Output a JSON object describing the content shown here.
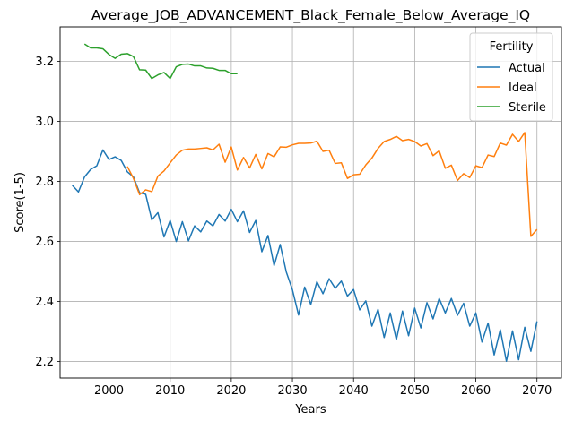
{
  "chart_data": {
    "type": "line",
    "title": "Average_JOB_ADVANCEMENT_Black_Female_Below_Average_IQ",
    "xlabel": "Years",
    "ylabel": "Score(1-5)",
    "xlim": [
      1992,
      2074
    ],
    "ylim": [
      2.145,
      3.315
    ],
    "xticks": [
      2000,
      2010,
      2020,
      2030,
      2040,
      2050,
      2060,
      2070
    ],
    "yticks": [
      2.2,
      2.4,
      2.6,
      2.8,
      3.0,
      3.2
    ],
    "ytick_labels": [
      "2.2",
      "2.4",
      "2.6",
      "2.8",
      "3.0",
      "3.2"
    ],
    "grid": true,
    "legend": {
      "title": "Fertility",
      "placement": "top-right"
    },
    "series": [
      {
        "name": "Actual",
        "color": "#1f77b4",
        "x": [
          1994,
          1995,
          1996,
          1997,
          1998,
          1999,
          2000,
          2001,
          2002,
          2003,
          2004,
          2005,
          2006,
          2007,
          2008,
          2009,
          2010,
          2011,
          2012,
          2013,
          2014,
          2015,
          2016,
          2017,
          2018,
          2019,
          2020,
          2021,
          2022,
          2023,
          2024,
          2025,
          2026,
          2027,
          2028,
          2029,
          2030,
          2031,
          2032,
          2033,
          2034,
          2035,
          2036,
          2037,
          2038,
          2039,
          2040,
          2041,
          2042,
          2043,
          2044,
          2045,
          2046,
          2047,
          2048,
          2049,
          2050,
          2051,
          2052,
          2053,
          2054,
          2055,
          2056,
          2057,
          2058,
          2059,
          2060,
          2061,
          2062,
          2063,
          2064,
          2065,
          2066,
          2067,
          2068,
          2069,
          2070
        ],
        "values": [
          2.787,
          2.765,
          2.815,
          2.84,
          2.852,
          2.905,
          2.873,
          2.882,
          2.87,
          2.832,
          2.815,
          2.762,
          2.757,
          2.672,
          2.696,
          2.615,
          2.67,
          2.6,
          2.666,
          2.602,
          2.652,
          2.632,
          2.668,
          2.652,
          2.69,
          2.668,
          2.707,
          2.666,
          2.702,
          2.63,
          2.67,
          2.566,
          2.62,
          2.52,
          2.59,
          2.498,
          2.439,
          2.355,
          2.448,
          2.39,
          2.466,
          2.426,
          2.476,
          2.444,
          2.468,
          2.418,
          2.44,
          2.372,
          2.402,
          2.318,
          2.374,
          2.28,
          2.362,
          2.273,
          2.368,
          2.286,
          2.378,
          2.312,
          2.396,
          2.342,
          2.41,
          2.362,
          2.41,
          2.354,
          2.394,
          2.318,
          2.362,
          2.265,
          2.328,
          2.222,
          2.306,
          2.201,
          2.302,
          2.206,
          2.314,
          2.234,
          2.334
        ]
      },
      {
        "name": "Ideal",
        "color": "#ff7f0e",
        "x": [
          2003,
          2004,
          2005,
          2006,
          2007,
          2008,
          2009,
          2010,
          2011,
          2012,
          2013,
          2014,
          2015,
          2016,
          2017,
          2018,
          2019,
          2020,
          2021,
          2022,
          2023,
          2024,
          2025,
          2026,
          2027,
          2028,
          2029,
          2030,
          2031,
          2032,
          2033,
          2034,
          2035,
          2036,
          2037,
          2038,
          2039,
          2040,
          2041,
          2042,
          2043,
          2044,
          2045,
          2046,
          2047,
          2048,
          2049,
          2050,
          2051,
          2052,
          2053,
          2054,
          2055,
          2056,
          2057,
          2058,
          2059,
          2060,
          2061,
          2062,
          2063,
          2064,
          2065,
          2066,
          2067,
          2068,
          2069,
          2070
        ],
        "values": [
          2.85,
          2.81,
          2.756,
          2.772,
          2.766,
          2.818,
          2.835,
          2.862,
          2.888,
          2.904,
          2.908,
          2.908,
          2.91,
          2.912,
          2.905,
          2.924,
          2.864,
          2.915,
          2.838,
          2.88,
          2.845,
          2.89,
          2.842,
          2.893,
          2.882,
          2.915,
          2.914,
          2.922,
          2.927,
          2.927,
          2.928,
          2.934,
          2.9,
          2.904,
          2.86,
          2.862,
          2.81,
          2.822,
          2.824,
          2.855,
          2.878,
          2.91,
          2.933,
          2.94,
          2.95,
          2.936,
          2.94,
          2.933,
          2.918,
          2.926,
          2.886,
          2.902,
          2.844,
          2.854,
          2.803,
          2.826,
          2.813,
          2.852,
          2.846,
          2.888,
          2.883,
          2.928,
          2.921,
          2.957,
          2.933,
          2.963,
          2.617,
          2.64
        ]
      },
      {
        "name": "Sterile",
        "color": "#2ca02c",
        "x": [
          1996,
          1997,
          1998,
          1999,
          2000,
          2001,
          2002,
          2003,
          2004,
          2005,
          2006,
          2007,
          2008,
          2009,
          2010,
          2011,
          2012,
          2013,
          2014,
          2015,
          2016,
          2017,
          2018,
          2019,
          2020,
          2021
        ],
        "values": [
          3.258,
          3.245,
          3.245,
          3.242,
          3.223,
          3.21,
          3.224,
          3.226,
          3.216,
          3.172,
          3.171,
          3.143,
          3.155,
          3.163,
          3.143,
          3.182,
          3.19,
          3.191,
          3.185,
          3.185,
          3.178,
          3.177,
          3.17,
          3.17,
          3.159,
          3.159
        ]
      }
    ]
  }
}
